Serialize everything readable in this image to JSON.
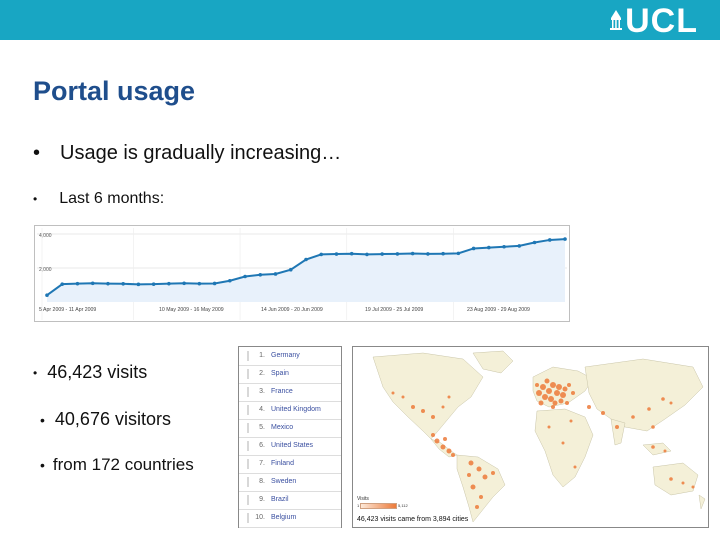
{
  "header": {
    "logo_text": "UCL",
    "accent_color": "#18a6c3"
  },
  "title": "Portal usage",
  "bullets": {
    "main": "Usage is gradually increasing…",
    "sub": "Last 6 months:"
  },
  "stats": {
    "visits": "46,423 visits",
    "visitors": "40,676 visitors",
    "countries": "from 172 countries"
  },
  "chart_data": {
    "type": "line",
    "color": "#1f77b4",
    "y_ticks": [
      "4,000",
      "2,000"
    ],
    "ylim": [
      0,
      4000
    ],
    "x_labels": [
      "5 Apr 2009 - 11 Apr 2009",
      "10 May 2009 - 16 May 2009",
      "14 Jun 2009 - 20 Jun 2009",
      "19 Jul 2009 - 25 Jul 2009",
      "23 Aug 2009 - 29 Aug 2009"
    ],
    "values": [
      400,
      1050,
      1080,
      1100,
      1080,
      1070,
      1040,
      1050,
      1080,
      1100,
      1080,
      1090,
      1250,
      1500,
      1600,
      1650,
      1900,
      2500,
      2800,
      2820,
      2840,
      2800,
      2820,
      2830,
      2850,
      2830,
      2840,
      2860,
      3150,
      3200,
      3250,
      3300,
      3500,
      3650,
      3700
    ]
  },
  "countries_table": {
    "rows": [
      {
        "num": "1.",
        "name": "Germany"
      },
      {
        "num": "2.",
        "name": "Spain"
      },
      {
        "num": "3.",
        "name": "France"
      },
      {
        "num": "4.",
        "name": "United Kingdom"
      },
      {
        "num": "5.",
        "name": "Mexico"
      },
      {
        "num": "6.",
        "name": "United States"
      },
      {
        "num": "7.",
        "name": "Finland"
      },
      {
        "num": "8.",
        "name": "Sweden"
      },
      {
        "num": "9.",
        "name": "Brazil"
      },
      {
        "num": "10.",
        "name": "Belgium"
      }
    ]
  },
  "map": {
    "legend_title": "Visits",
    "legend_min": "1",
    "legend_max": "5,112",
    "caption": "46,423 visits came from 3,894 cities",
    "dot_color": "#ec7a3a"
  }
}
